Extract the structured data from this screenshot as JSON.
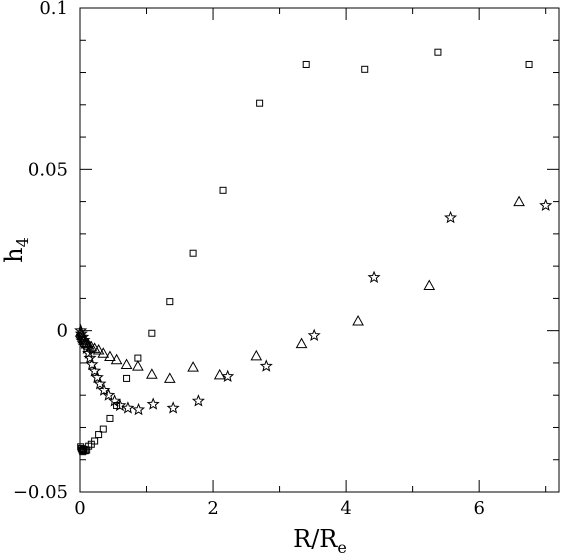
{
  "chart_data": {
    "type": "scatter",
    "title": "",
    "xlabel": "R/Re",
    "xlabel_main": "R/R",
    "xlabel_sub": "e",
    "ylabel": "h4",
    "ylabel_main": "h",
    "ylabel_sub": "4",
    "xlim": [
      0,
      7.2
    ],
    "ylim": [
      -0.05,
      0.1
    ],
    "xticks": [
      0,
      2,
      4,
      6
    ],
    "xtick_labels": [
      "0",
      "2",
      "4",
      "6"
    ],
    "yticks": [
      -0.05,
      0,
      0.05,
      0.1
    ],
    "ytick_labels": [
      "−0.05",
      "0",
      "0.05",
      "0.1"
    ],
    "grid": false,
    "series": [
      {
        "marker": "square",
        "x": [
          0.01,
          0.02,
          0.03,
          0.04,
          0.05,
          0.06,
          0.08,
          0.1,
          0.13,
          0.17,
          0.22,
          0.28,
          0.35,
          0.45,
          0.55,
          0.7,
          0.87,
          1.08,
          1.35,
          1.7,
          2.15,
          2.7,
          3.4,
          4.28,
          5.38,
          6.75
        ],
        "y": [
          -0.036,
          -0.0365,
          -0.037,
          -0.0375,
          -0.0372,
          -0.0368,
          -0.0372,
          -0.037,
          -0.0358,
          -0.0352,
          -0.0342,
          -0.0322,
          -0.0305,
          -0.0272,
          -0.0232,
          -0.0148,
          -0.0085,
          -0.0008,
          0.009,
          0.024,
          0.0435,
          0.0705,
          0.0825,
          0.081,
          0.0863,
          0.0825
        ]
      },
      {
        "marker": "triangle",
        "x": [
          0.01,
          0.02,
          0.03,
          0.04,
          0.05,
          0.06,
          0.08,
          0.1,
          0.13,
          0.17,
          0.22,
          0.28,
          0.35,
          0.45,
          0.55,
          0.7,
          0.87,
          1.08,
          1.35,
          1.7,
          2.1,
          2.65,
          3.33,
          4.18,
          5.25,
          6.6
        ],
        "y": [
          -0.0005,
          -0.001,
          -0.0015,
          -0.002,
          -0.0025,
          -0.003,
          -0.0035,
          -0.004,
          -0.0045,
          -0.005,
          -0.0055,
          -0.006,
          -0.007,
          -0.008,
          -0.009,
          -0.0105,
          -0.011,
          -0.0135,
          -0.0148,
          -0.0113,
          -0.0137,
          -0.0078,
          -0.004,
          0.003,
          0.014,
          0.04
        ]
      },
      {
        "marker": "star",
        "x": [
          0.01,
          0.02,
          0.04,
          0.06,
          0.08,
          0.1,
          0.13,
          0.15,
          0.18,
          0.22,
          0.26,
          0.3,
          0.36,
          0.43,
          0.52,
          0.6,
          0.72,
          0.88,
          1.1,
          1.4,
          1.78,
          2.22,
          2.8,
          3.52,
          4.42,
          5.57,
          7.0
        ],
        "y": [
          0.0,
          -0.001,
          -0.002,
          -0.003,
          -0.004,
          -0.0055,
          -0.007,
          -0.0085,
          -0.0105,
          -0.0125,
          -0.0145,
          -0.0165,
          -0.0185,
          -0.02,
          -0.0218,
          -0.0232,
          -0.024,
          -0.0245,
          -0.0228,
          -0.024,
          -0.0218,
          -0.0142,
          -0.011,
          -0.0015,
          0.0165,
          0.035,
          0.0388
        ]
      }
    ]
  }
}
